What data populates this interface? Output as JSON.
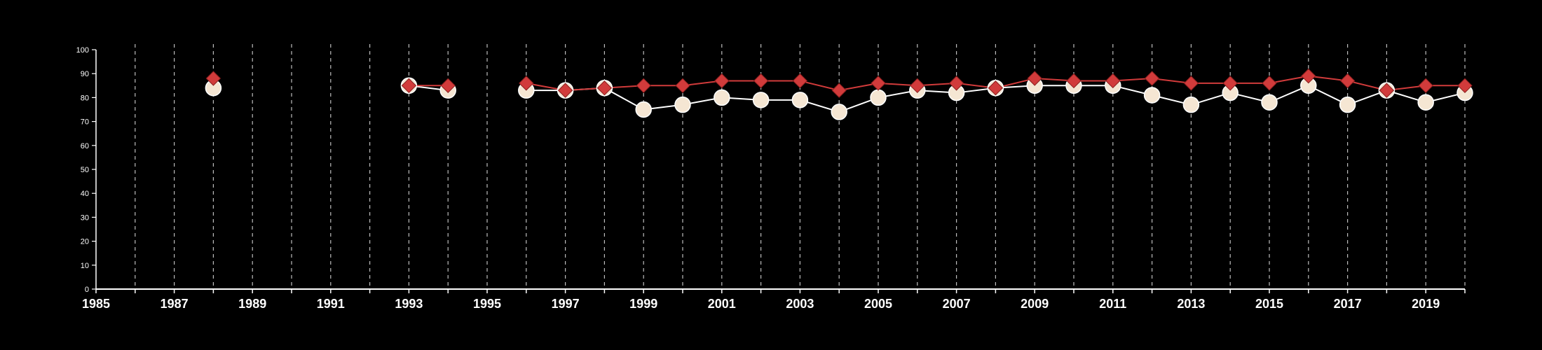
{
  "chart_data": {
    "type": "line",
    "title": "",
    "xlabel": "",
    "ylabel": "",
    "xlim": [
      1985,
      2020
    ],
    "ylim": [
      0,
      100
    ],
    "x_ticks": [
      "1985",
      "1987",
      "1989",
      "1991",
      "1993",
      "1995",
      "1997",
      "1999",
      "2001",
      "2003",
      "2005",
      "2007",
      "2009",
      "2011",
      "2013",
      "2015",
      "2017",
      "2019"
    ],
    "y_ticks": [
      "0",
      "10",
      "20",
      "30",
      "40",
      "50",
      "60",
      "70",
      "80",
      "90",
      "100"
    ],
    "grid": "vertical dashed lines at each year",
    "legend": "none",
    "series": [
      {
        "marker": "circle",
        "color": "#f5e6d3",
        "points": [
          [
            1988,
            84
          ],
          [
            1993,
            85
          ],
          [
            1994,
            83
          ],
          [
            1996,
            83
          ],
          [
            1997,
            83
          ],
          [
            1998,
            84
          ],
          [
            1999,
            75
          ],
          [
            2000,
            77
          ],
          [
            2001,
            80
          ],
          [
            2002,
            79
          ],
          [
            2003,
            79
          ],
          [
            2004,
            74
          ],
          [
            2005,
            80
          ],
          [
            2006,
            83
          ],
          [
            2007,
            82
          ],
          [
            2008,
            84
          ],
          [
            2009,
            85
          ],
          [
            2010,
            85
          ],
          [
            2011,
            85
          ],
          [
            2012,
            81
          ],
          [
            2013,
            77
          ],
          [
            2014,
            82
          ],
          [
            2015,
            78
          ],
          [
            2016,
            85
          ],
          [
            2017,
            77
          ],
          [
            2018,
            83
          ],
          [
            2019,
            78
          ],
          [
            2020,
            82
          ]
        ]
      },
      {
        "marker": "diamond",
        "color": "#d13b3b",
        "points": [
          [
            1988,
            88
          ],
          [
            1993,
            85
          ],
          [
            1994,
            85
          ],
          [
            1996,
            86
          ],
          [
            1997,
            83
          ],
          [
            1998,
            84
          ],
          [
            1999,
            85
          ],
          [
            2000,
            85
          ],
          [
            2001,
            87
          ],
          [
            2002,
            87
          ],
          [
            2003,
            87
          ],
          [
            2004,
            83
          ],
          [
            2005,
            86
          ],
          [
            2006,
            85
          ],
          [
            2007,
            86
          ],
          [
            2008,
            84
          ],
          [
            2009,
            88
          ],
          [
            2010,
            87
          ],
          [
            2011,
            87
          ],
          [
            2012,
            88
          ],
          [
            2013,
            86
          ],
          [
            2014,
            86
          ],
          [
            2015,
            86
          ],
          [
            2016,
            89
          ],
          [
            2017,
            87
          ],
          [
            2018,
            83
          ],
          [
            2019,
            85
          ],
          [
            2020,
            85
          ]
        ]
      }
    ]
  }
}
